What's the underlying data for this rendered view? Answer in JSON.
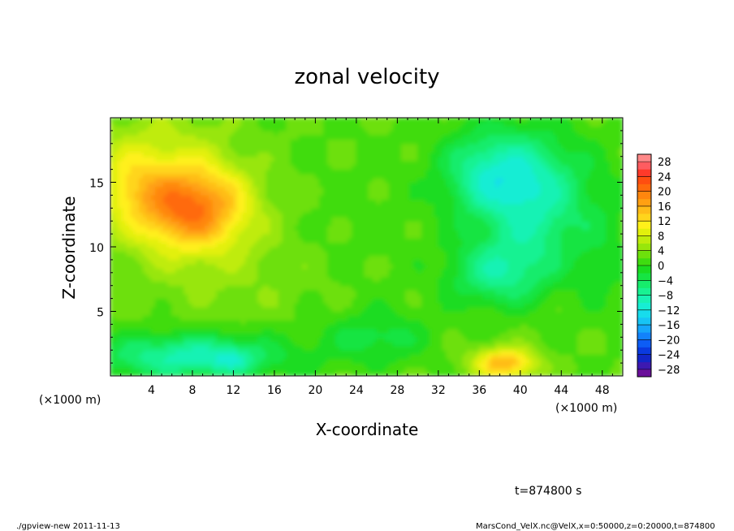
{
  "chart_data": {
    "type": "heatmap",
    "title": "zonal velocity",
    "xlabel": "X-coordinate",
    "ylabel": "Z-coordinate",
    "x_unit": "(×1000 m)",
    "y_unit": "(×1000 m)",
    "xlim": [
      0,
      50
    ],
    "ylim": [
      0,
      20
    ],
    "x_ticks": [
      "4",
      "8",
      "12",
      "16",
      "20",
      "24",
      "28",
      "32",
      "36",
      "40",
      "44",
      "48"
    ],
    "y_ticks": [
      "5",
      "10",
      "15"
    ],
    "x_tick_values": [
      4,
      8,
      12,
      16,
      20,
      24,
      28,
      32,
      36,
      40,
      44,
      48
    ],
    "y_tick_values": [
      5,
      10,
      15
    ],
    "colorbar": {
      "labels": [
        "28",
        "24",
        "20",
        "16",
        "12",
        "8",
        "4",
        "0",
        "−4",
        "−8",
        "−12",
        "−16",
        "−20",
        "−24",
        "−28"
      ],
      "levels": [
        -30,
        -28,
        -26,
        -24,
        -22,
        -20,
        -18,
        -16,
        -14,
        -12,
        -10,
        -8,
        -6,
        -4,
        -2,
        0,
        2,
        4,
        6,
        8,
        10,
        12,
        14,
        16,
        18,
        20,
        22,
        24,
        26,
        28,
        30
      ],
      "colors": [
        "#6a0f9a",
        "#3d19b0",
        "#1226c8",
        "#0a3ae0",
        "#0d5df5",
        "#1282fb",
        "#16a6fb",
        "#17c4f5",
        "#17dcec",
        "#17edd4",
        "#18f2b4",
        "#18f292",
        "#17ec6c",
        "#16e443",
        "#1adc20",
        "#3fdc10",
        "#6de00c",
        "#98e60c",
        "#bfec0c",
        "#e2f00c",
        "#fff01a",
        "#ffd51c",
        "#ffbc18",
        "#ffa012",
        "#ff860e",
        "#ff6a0c",
        "#ff4e10",
        "#ff3a2a",
        "#ff5c60",
        "#ff8888"
      ]
    },
    "features": [
      {
        "name": "positive-max-upper-left",
        "x": 8,
        "z": 13,
        "value": 18
      },
      {
        "name": "positive-lower-right",
        "x": 38.5,
        "z": 1,
        "value": 16
      },
      {
        "name": "negative-upper-right",
        "x": 40,
        "z": 15,
        "value": -10
      },
      {
        "name": "negative-mid-right",
        "x": 38,
        "z": 8,
        "value": -8
      },
      {
        "name": "negative-lower-left",
        "x": 12,
        "z": 1,
        "value": -12
      }
    ],
    "time_label": "t=874800 s"
  },
  "footer": {
    "left": "./gpview-new   2011-11-13",
    "right": "MarsCond_VelX.nc@VelX,x=0:50000,z=0:20000,t=874800"
  }
}
